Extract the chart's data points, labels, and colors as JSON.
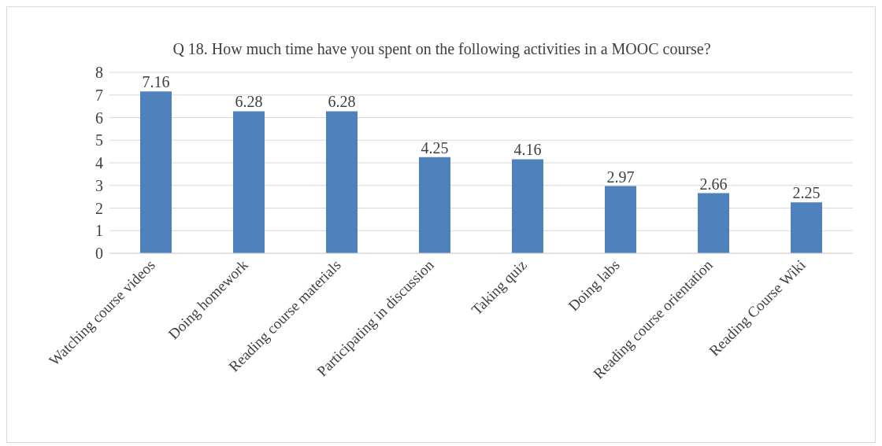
{
  "chart_data": {
    "type": "bar",
    "title": "Q 18. How much time have you spent on the following activities in a MOOC course?",
    "categories": [
      "Watching course videos",
      "Doing homework",
      "Reading course materials",
      "Participating in discussion",
      "Taking quiz",
      "Doing labs",
      "Reading course orientation",
      "Reading Course Wiki"
    ],
    "values": [
      7.16,
      6.28,
      6.28,
      4.25,
      4.16,
      2.97,
      2.66,
      2.25
    ],
    "color": "#4f81bd",
    "ylim": [
      0,
      8
    ],
    "yticks": [
      0,
      1,
      2,
      3,
      4,
      5,
      6,
      7,
      8
    ],
    "grid": "y",
    "data_labels": true
  }
}
